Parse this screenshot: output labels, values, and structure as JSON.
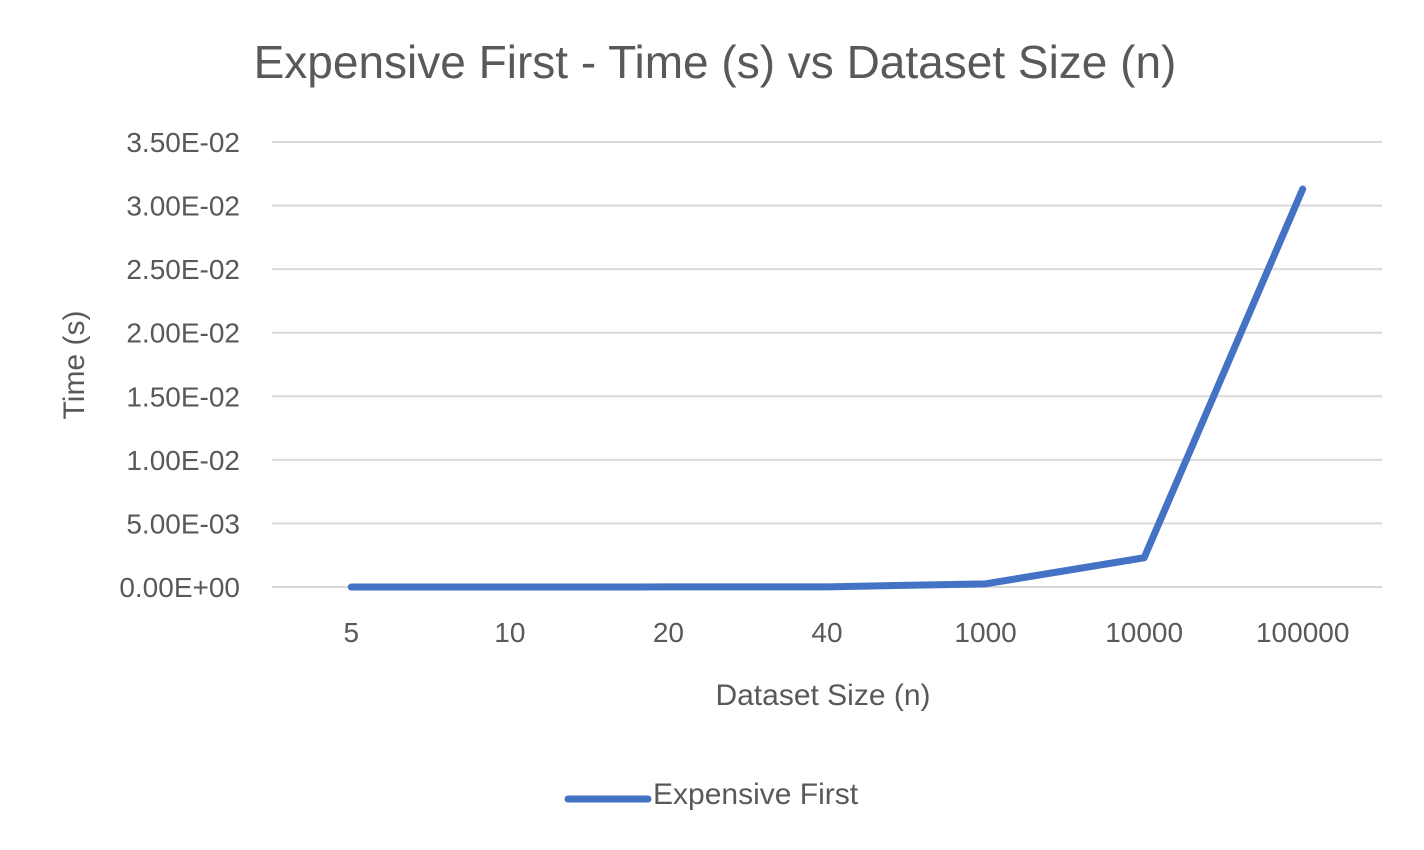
{
  "chart_data": {
    "type": "line",
    "title": "Expensive First - Time (s) vs Dataset Size (n)",
    "xlabel": "Dataset Size (n)",
    "ylabel": "Time (s)",
    "categories": [
      "5",
      "10",
      "20",
      "40",
      "1000",
      "10000",
      "100000"
    ],
    "y_ticks": [
      "0.00E+00",
      "5.00E-03",
      "1.00E-02",
      "1.50E-02",
      "2.00E-02",
      "2.50E-02",
      "3.00E-02",
      "3.50E-02"
    ],
    "ylim": [
      0,
      0.035
    ],
    "grid": true,
    "legend_position": "bottom",
    "series": [
      {
        "name": "Expensive First",
        "color": "#4472C4",
        "values": [
          2e-06,
          3e-06,
          5e-06,
          1e-05,
          0.00025,
          0.0023,
          0.0313
        ]
      }
    ]
  }
}
